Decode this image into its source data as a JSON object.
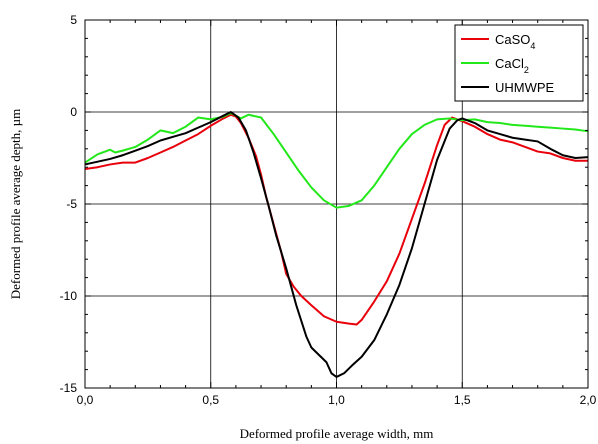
{
  "chart_data": {
    "type": "line",
    "xlabel": "Deformed profile average width, mm",
    "ylabel": "Deformed profile average depth, µm",
    "xlim": [
      0,
      2
    ],
    "ylim": [
      -15,
      5
    ],
    "x_ticks": [
      "0,0",
      "0,5",
      "1,0",
      "1,5",
      "2,0"
    ],
    "y_ticks": [
      "5",
      "0",
      "-5",
      "-10",
      "-15"
    ],
    "grid": true,
    "legend_position": "top-right",
    "legend": [
      {
        "base": "CaSO",
        "sub": "4",
        "color": "#e8000b"
      },
      {
        "base": "CaCl",
        "sub": "2",
        "color": "#22e81a"
      },
      {
        "base": "UHMWPE",
        "sub": "",
        "color": "#000000"
      }
    ],
    "series": [
      {
        "name": "CaSO4",
        "color": "#e8000b",
        "points": [
          [
            0.0,
            -3.1
          ],
          [
            0.05,
            -3.0
          ],
          [
            0.1,
            -2.85
          ],
          [
            0.15,
            -2.75
          ],
          [
            0.2,
            -2.75
          ],
          [
            0.25,
            -2.5
          ],
          [
            0.3,
            -2.2
          ],
          [
            0.35,
            -1.9
          ],
          [
            0.4,
            -1.55
          ],
          [
            0.45,
            -1.2
          ],
          [
            0.5,
            -0.75
          ],
          [
            0.55,
            -0.35
          ],
          [
            0.58,
            -0.15
          ],
          [
            0.6,
            -0.25
          ],
          [
            0.62,
            -0.6
          ],
          [
            0.65,
            -1.4
          ],
          [
            0.68,
            -2.4
          ],
          [
            0.7,
            -3.4
          ],
          [
            0.72,
            -4.6
          ],
          [
            0.75,
            -6.1
          ],
          [
            0.78,
            -7.6
          ],
          [
            0.8,
            -8.8
          ],
          [
            0.83,
            -9.5
          ],
          [
            0.86,
            -10.0
          ],
          [
            0.9,
            -10.5
          ],
          [
            0.95,
            -11.1
          ],
          [
            1.0,
            -11.4
          ],
          [
            1.05,
            -11.5
          ],
          [
            1.08,
            -11.55
          ],
          [
            1.1,
            -11.3
          ],
          [
            1.15,
            -10.3
          ],
          [
            1.2,
            -9.2
          ],
          [
            1.25,
            -7.7
          ],
          [
            1.3,
            -5.8
          ],
          [
            1.35,
            -3.9
          ],
          [
            1.4,
            -1.8
          ],
          [
            1.43,
            -0.7
          ],
          [
            1.46,
            -0.3
          ],
          [
            1.5,
            -0.5
          ],
          [
            1.55,
            -0.8
          ],
          [
            1.6,
            -1.2
          ],
          [
            1.65,
            -1.5
          ],
          [
            1.7,
            -1.65
          ],
          [
            1.75,
            -1.9
          ],
          [
            1.8,
            -2.15
          ],
          [
            1.85,
            -2.25
          ],
          [
            1.9,
            -2.5
          ],
          [
            1.95,
            -2.65
          ],
          [
            2.0,
            -2.65
          ]
        ]
      },
      {
        "name": "CaCl2",
        "color": "#22e81a",
        "points": [
          [
            0.0,
            -2.75
          ],
          [
            0.05,
            -2.3
          ],
          [
            0.1,
            -2.05
          ],
          [
            0.12,
            -2.2
          ],
          [
            0.15,
            -2.1
          ],
          [
            0.2,
            -1.9
          ],
          [
            0.25,
            -1.5
          ],
          [
            0.3,
            -1.0
          ],
          [
            0.35,
            -1.15
          ],
          [
            0.4,
            -0.8
          ],
          [
            0.45,
            -0.3
          ],
          [
            0.5,
            -0.4
          ],
          [
            0.55,
            -0.25
          ],
          [
            0.58,
            -0.05
          ],
          [
            0.62,
            -0.35
          ],
          [
            0.65,
            -0.15
          ],
          [
            0.7,
            -0.3
          ],
          [
            0.75,
            -1.2
          ],
          [
            0.8,
            -2.2
          ],
          [
            0.85,
            -3.2
          ],
          [
            0.9,
            -4.1
          ],
          [
            0.95,
            -4.8
          ],
          [
            1.0,
            -5.2
          ],
          [
            1.05,
            -5.1
          ],
          [
            1.1,
            -4.8
          ],
          [
            1.15,
            -4.0
          ],
          [
            1.2,
            -3.0
          ],
          [
            1.25,
            -2.0
          ],
          [
            1.3,
            -1.2
          ],
          [
            1.35,
            -0.7
          ],
          [
            1.4,
            -0.4
          ],
          [
            1.45,
            -0.35
          ],
          [
            1.5,
            -0.45
          ],
          [
            1.55,
            -0.4
          ],
          [
            1.6,
            -0.55
          ],
          [
            1.65,
            -0.6
          ],
          [
            1.7,
            -0.7
          ],
          [
            1.75,
            -0.75
          ],
          [
            1.8,
            -0.8
          ],
          [
            1.85,
            -0.85
          ],
          [
            1.9,
            -0.9
          ],
          [
            1.95,
            -0.95
          ],
          [
            2.0,
            -1.05
          ]
        ]
      },
      {
        "name": "UHMWPE",
        "color": "#000000",
        "points": [
          [
            0.0,
            -2.85
          ],
          [
            0.05,
            -2.7
          ],
          [
            0.1,
            -2.55
          ],
          [
            0.15,
            -2.35
          ],
          [
            0.2,
            -2.1
          ],
          [
            0.25,
            -1.85
          ],
          [
            0.3,
            -1.55
          ],
          [
            0.35,
            -1.35
          ],
          [
            0.4,
            -1.15
          ],
          [
            0.45,
            -0.85
          ],
          [
            0.5,
            -0.55
          ],
          [
            0.55,
            -0.2
          ],
          [
            0.58,
            0.0
          ],
          [
            0.61,
            -0.3
          ],
          [
            0.64,
            -1.0
          ],
          [
            0.67,
            -2.2
          ],
          [
            0.7,
            -3.6
          ],
          [
            0.73,
            -5.1
          ],
          [
            0.76,
            -6.7
          ],
          [
            0.8,
            -8.5
          ],
          [
            0.84,
            -10.5
          ],
          [
            0.88,
            -12.2
          ],
          [
            0.9,
            -12.8
          ],
          [
            0.93,
            -13.2
          ],
          [
            0.96,
            -13.6
          ],
          [
            0.98,
            -14.2
          ],
          [
            1.0,
            -14.4
          ],
          [
            1.03,
            -14.2
          ],
          [
            1.06,
            -13.8
          ],
          [
            1.1,
            -13.3
          ],
          [
            1.15,
            -12.4
          ],
          [
            1.2,
            -11.0
          ],
          [
            1.25,
            -9.4
          ],
          [
            1.3,
            -7.4
          ],
          [
            1.35,
            -5.0
          ],
          [
            1.4,
            -2.6
          ],
          [
            1.45,
            -0.9
          ],
          [
            1.48,
            -0.45
          ],
          [
            1.5,
            -0.35
          ],
          [
            1.55,
            -0.6
          ],
          [
            1.6,
            -1.0
          ],
          [
            1.65,
            -1.2
          ],
          [
            1.7,
            -1.4
          ],
          [
            1.75,
            -1.5
          ],
          [
            1.8,
            -1.6
          ],
          [
            1.85,
            -2.0
          ],
          [
            1.9,
            -2.35
          ],
          [
            1.95,
            -2.5
          ],
          [
            2.0,
            -2.45
          ]
        ]
      }
    ]
  }
}
